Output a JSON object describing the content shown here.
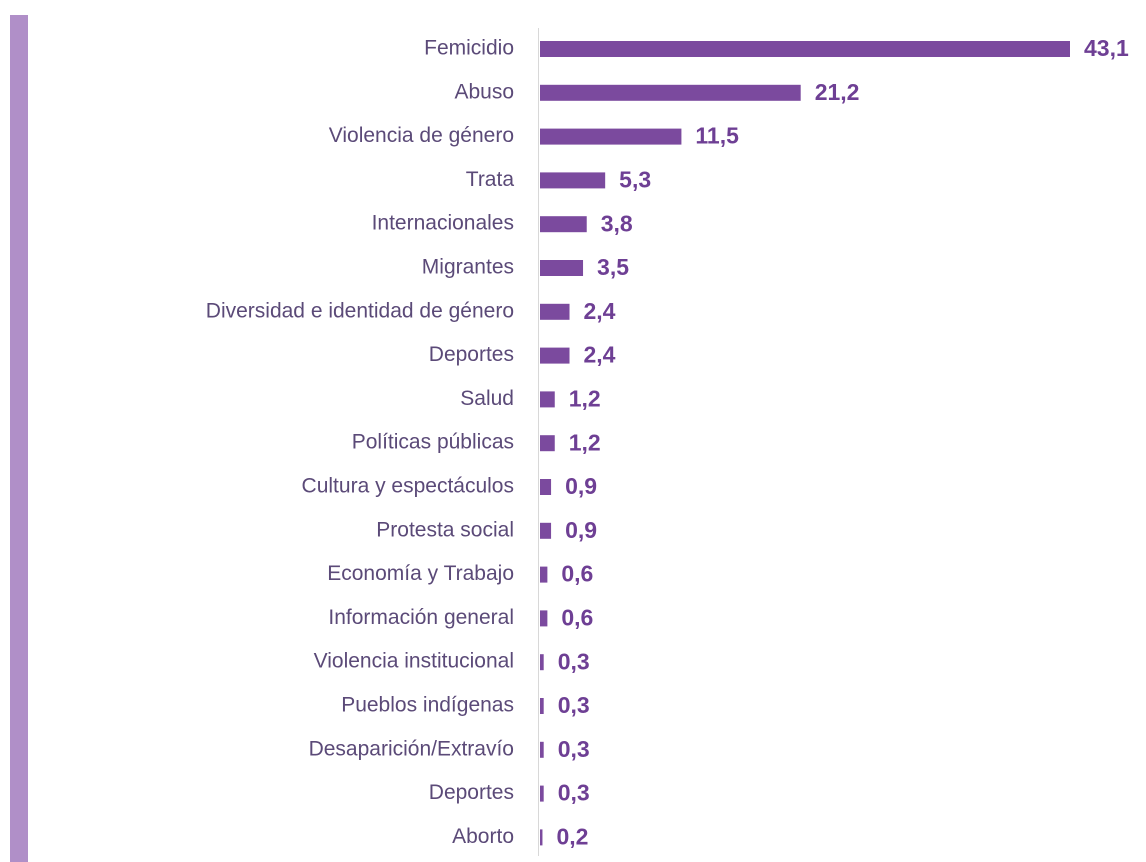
{
  "chart_data": {
    "type": "bar",
    "orientation": "horizontal",
    "categories": [
      "Femicidio",
      "Abuso",
      "Violencia de género",
      "Trata",
      "Internacionales",
      "Migrantes",
      "Diversidad e identidad de género",
      "Deportes",
      "Salud",
      "Políticas públicas",
      "Cultura y espectáculos",
      "Protesta social",
      "Economía y Trabajo",
      "Información general",
      "Violencia institucional",
      "Pueblos indígenas",
      "Desaparición/Extravío",
      "Deportes",
      "Aborto"
    ],
    "values": [
      43.1,
      21.2,
      11.5,
      5.3,
      3.8,
      3.5,
      2.4,
      2.4,
      1.2,
      1.2,
      0.9,
      0.9,
      0.6,
      0.6,
      0.3,
      0.3,
      0.3,
      0.3,
      0.2
    ],
    "value_labels": [
      "43,1",
      "21,2",
      "11,5",
      "5,3",
      "3,8",
      "3,5",
      "2,4",
      "2,4",
      "1,2",
      "1,2",
      "0,9",
      "0,9",
      "0,6",
      "0,6",
      "0,3",
      "0,3",
      "0,3",
      "0,3",
      "0,2"
    ],
    "color": "#7b4a9e"
  }
}
